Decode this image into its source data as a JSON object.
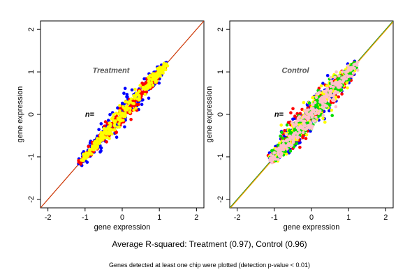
{
  "chart_data": [
    {
      "type": "scatter",
      "panel_label": "Treatment",
      "n_label": "n=",
      "xlabel": "gene expression",
      "ylabel": "gene expression",
      "xlim": [
        -2.2,
        2.2
      ],
      "ylim": [
        -2.2,
        2.2
      ],
      "xticks": [
        -2,
        -1,
        0,
        1,
        2
      ],
      "yticks": [
        -2,
        -1,
        0,
        1,
        2
      ],
      "grid": false,
      "diagonal_lines": [
        {
          "slope": 1,
          "intercept": 0,
          "color": "#cc3300"
        }
      ],
      "series": [
        {
          "color": "#0000ff",
          "cloud": {
            "x_range": [
              -1.15,
              1.2
            ],
            "spread": 0.16
          }
        },
        {
          "color": "#ff0000",
          "cloud": {
            "x_range": [
              -1.15,
              1.15
            ],
            "spread": 0.12
          }
        },
        {
          "color": "#ffff00",
          "cloud": {
            "x_range": [
              -1.1,
              1.2
            ],
            "spread": 0.11
          }
        }
      ]
    },
    {
      "type": "scatter",
      "panel_label": "Control",
      "n_label": "n=",
      "xlabel": "gene expression",
      "ylabel": "gene expression",
      "xlim": [
        -2.2,
        2.2
      ],
      "ylim": [
        -2.2,
        2.2
      ],
      "xticks": [
        -2,
        -1,
        0,
        1,
        2
      ],
      "yticks": [
        -2,
        -1,
        0,
        1,
        2
      ],
      "grid": false,
      "diagonal_lines": [
        {
          "slope": 1,
          "intercept": 0,
          "color": "#228b22"
        },
        {
          "slope": 1,
          "intercept": 0,
          "color": "#ffa500"
        }
      ],
      "series": [
        {
          "color": "#0000ff",
          "cloud": {
            "x_range": [
              -1.1,
              1.2
            ],
            "spread": 0.22
          }
        },
        {
          "color": "#ff0000",
          "cloud": {
            "x_range": [
              -1.1,
              1.2
            ],
            "spread": 0.2
          }
        },
        {
          "color": "#ffff00",
          "cloud": {
            "x_range": [
              -1.1,
              1.2
            ],
            "spread": 0.19
          }
        },
        {
          "color": "#00dd00",
          "cloud": {
            "x_range": [
              -1.1,
              1.2
            ],
            "spread": 0.17
          }
        },
        {
          "color": "#ffc0cb",
          "cloud": {
            "x_range": [
              -1.1,
              1.25
            ],
            "spread": 0.14
          }
        }
      ]
    }
  ],
  "captions": {
    "main": "Average R-squared: Treatment (0.97), Control (0.96)",
    "sub": "Genes detected at least one chip were plotted (detection p-value < 0.01)"
  }
}
